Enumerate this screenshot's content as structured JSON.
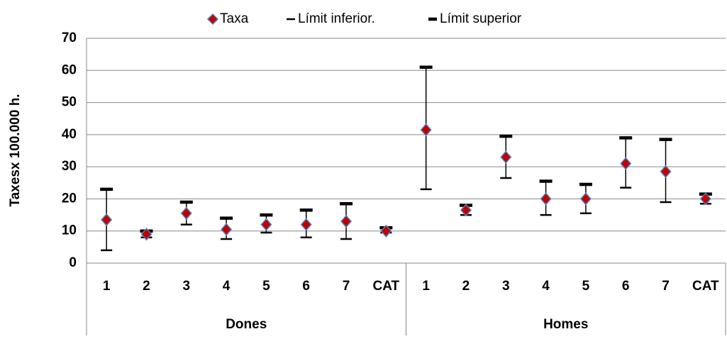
{
  "chart_data": {
    "type": "errorbar",
    "y_label": "Taxesx 100.000 h.",
    "groups": [
      {
        "name": "Dones",
        "categories": [
          "1",
          "2",
          "3",
          "4",
          "5",
          "6",
          "7",
          "CAT"
        ]
      },
      {
        "name": "Homes",
        "categories": [
          "1",
          "2",
          "3",
          "4",
          "5",
          "6",
          "7",
          "CAT"
        ]
      }
    ],
    "series": [
      {
        "name": "Taxa",
        "color": "#c00000",
        "edge_color": "#4f81bd",
        "values": [
          13.5,
          9,
          15.5,
          10.5,
          12,
          12,
          13,
          10,
          41.5,
          16.5,
          33,
          20,
          20,
          31,
          28.5,
          20
        ]
      },
      {
        "name": "Límit inferior.",
        "color": "#000000",
        "values": [
          4,
          8,
          12,
          7.5,
          9.5,
          8,
          7.5,
          9.5,
          23,
          15,
          26.5,
          15,
          15.5,
          23.5,
          19,
          18.5
        ]
      },
      {
        "name": "Límit superior",
        "color": "#000000",
        "values": [
          23,
          10,
          19,
          14,
          15,
          16.5,
          18.5,
          11,
          61,
          18,
          39.5,
          25.5,
          24.5,
          39,
          38.5,
          21.5
        ]
      }
    ],
    "ylim": [
      0,
      70
    ],
    "yticks": [
      0,
      10,
      20,
      30,
      40,
      50,
      60,
      70
    ],
    "grid": true,
    "legend": "top"
  }
}
